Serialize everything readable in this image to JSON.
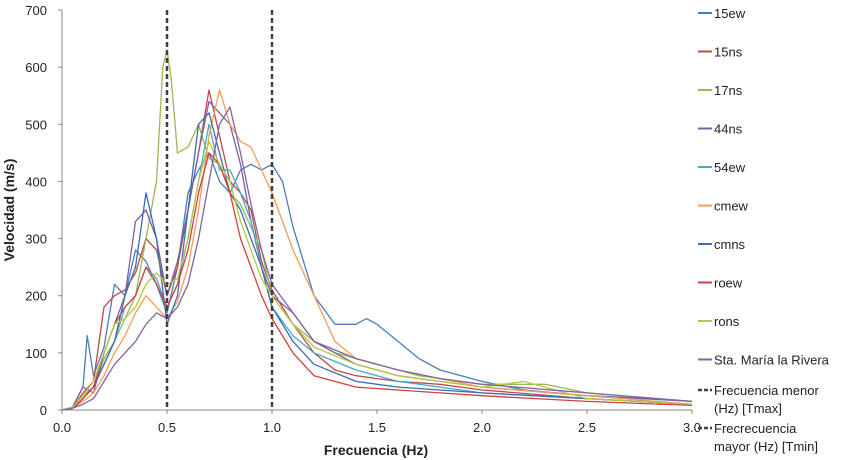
{
  "chart_data": {
    "type": "line",
    "title": "",
    "xlabel": "Frecuencia (Hz)",
    "ylabel": "Velocidad (m/s)",
    "xlim": [
      0,
      3.0
    ],
    "ylim": [
      0,
      700
    ],
    "xticks": [
      "0.0",
      "0.5",
      "1.0",
      "1.5",
      "2.0",
      "2.5",
      "3.0"
    ],
    "yticks": [
      "0",
      "100",
      "200",
      "300",
      "400",
      "500",
      "600",
      "700"
    ],
    "grid": false,
    "legend_position": "right",
    "series": [
      {
        "name": "15ew",
        "color": "#4a7ebb",
        "x": [
          0,
          0.05,
          0.1,
          0.12,
          0.15,
          0.2,
          0.25,
          0.3,
          0.35,
          0.4,
          0.45,
          0.5,
          0.55,
          0.6,
          0.65,
          0.7,
          0.75,
          0.8,
          0.85,
          0.9,
          0.95,
          1.0,
          1.05,
          1.1,
          1.2,
          1.3,
          1.4,
          1.45,
          1.5,
          1.6,
          1.7,
          1.8,
          2.0,
          2.2,
          2.5,
          2.8,
          3.0
        ],
        "y": [
          0,
          5,
          40,
          130,
          60,
          110,
          220,
          200,
          280,
          260,
          220,
          170,
          250,
          380,
          420,
          450,
          400,
          380,
          420,
          430,
          420,
          430,
          400,
          320,
          200,
          150,
          150,
          160,
          150,
          120,
          90,
          70,
          50,
          35,
          25,
          20,
          15
        ]
      },
      {
        "name": "15ns",
        "color": "#be4b48",
        "x": [
          0,
          0.05,
          0.1,
          0.15,
          0.2,
          0.25,
          0.3,
          0.35,
          0.4,
          0.45,
          0.5,
          0.55,
          0.6,
          0.65,
          0.7,
          0.75,
          0.8,
          0.85,
          0.9,
          0.95,
          1.0,
          1.1,
          1.2,
          1.3,
          1.4,
          1.6,
          1.8,
          2.0,
          2.5,
          3.0
        ],
        "y": [
          0,
          3,
          30,
          50,
          180,
          200,
          210,
          240,
          300,
          280,
          200,
          250,
          350,
          450,
          560,
          480,
          400,
          380,
          350,
          260,
          210,
          150,
          100,
          70,
          60,
          50,
          45,
          35,
          20,
          10
        ]
      },
      {
        "name": "17ns",
        "color": "#98b954",
        "x": [
          0,
          0.05,
          0.1,
          0.15,
          0.2,
          0.25,
          0.3,
          0.35,
          0.4,
          0.45,
          0.48,
          0.5,
          0.52,
          0.55,
          0.6,
          0.65,
          0.7,
          0.75,
          0.8,
          0.85,
          0.9,
          0.95,
          1.0,
          1.1,
          1.2,
          1.3,
          1.5,
          1.7,
          2.0,
          2.3,
          2.5,
          3.0
        ],
        "y": [
          0,
          5,
          25,
          40,
          90,
          120,
          160,
          200,
          300,
          400,
          600,
          630,
          580,
          450,
          460,
          500,
          440,
          430,
          380,
          360,
          320,
          280,
          200,
          150,
          120,
          100,
          80,
          60,
          45,
          45,
          30,
          15
        ]
      },
      {
        "name": "44ns",
        "color": "#7d60a0",
        "x": [
          0,
          0.05,
          0.1,
          0.15,
          0.2,
          0.25,
          0.3,
          0.35,
          0.4,
          0.45,
          0.5,
          0.55,
          0.6,
          0.65,
          0.7,
          0.75,
          0.8,
          0.85,
          0.9,
          0.95,
          1.0,
          1.1,
          1.2,
          1.4,
          1.6,
          1.8,
          2.0,
          2.5,
          3.0
        ],
        "y": [
          0,
          5,
          40,
          30,
          100,
          150,
          200,
          330,
          350,
          300,
          200,
          260,
          350,
          450,
          540,
          520,
          500,
          430,
          330,
          250,
          200,
          170,
          120,
          80,
          60,
          50,
          40,
          25,
          15
        ]
      },
      {
        "name": "54ew",
        "color": "#46aac5",
        "x": [
          0,
          0.05,
          0.1,
          0.15,
          0.2,
          0.25,
          0.3,
          0.35,
          0.4,
          0.45,
          0.5,
          0.55,
          0.6,
          0.65,
          0.7,
          0.75,
          0.8,
          0.85,
          0.9,
          0.95,
          1.0,
          1.1,
          1.2,
          1.4,
          1.6,
          1.8,
          2.0,
          2.5,
          3.0
        ],
        "y": [
          0,
          3,
          20,
          40,
          80,
          120,
          180,
          200,
          250,
          230,
          180,
          220,
          300,
          400,
          500,
          420,
          420,
          380,
          330,
          250,
          180,
          130,
          100,
          70,
          50,
          40,
          30,
          20,
          10
        ]
      },
      {
        "name": "cmew",
        "color": "#f59d56",
        "x": [
          0,
          0.05,
          0.1,
          0.15,
          0.2,
          0.25,
          0.3,
          0.35,
          0.4,
          0.45,
          0.5,
          0.55,
          0.6,
          0.65,
          0.7,
          0.75,
          0.8,
          0.85,
          0.9,
          0.95,
          1.0,
          1.05,
          1.1,
          1.2,
          1.3,
          1.4,
          1.6,
          1.8,
          2.0,
          2.5,
          3.0
        ],
        "y": [
          0,
          3,
          15,
          30,
          60,
          100,
          130,
          170,
          200,
          180,
          160,
          190,
          250,
          350,
          480,
          560,
          500,
          470,
          460,
          420,
          380,
          330,
          280,
          200,
          120,
          90,
          70,
          55,
          40,
          25,
          10
        ]
      },
      {
        "name": "cmns",
        "color": "#3e6cb0",
        "x": [
          0,
          0.05,
          0.1,
          0.15,
          0.2,
          0.25,
          0.3,
          0.35,
          0.4,
          0.45,
          0.5,
          0.55,
          0.6,
          0.65,
          0.7,
          0.75,
          0.8,
          0.85,
          0.9,
          0.95,
          1.0,
          1.1,
          1.2,
          1.4,
          1.6,
          1.8,
          2.0,
          2.5,
          3.0
        ],
        "y": [
          0,
          3,
          20,
          40,
          80,
          120,
          200,
          250,
          380,
          300,
          150,
          200,
          350,
          500,
          520,
          450,
          380,
          350,
          300,
          250,
          180,
          120,
          80,
          50,
          40,
          35,
          30,
          20,
          10
        ]
      },
      {
        "name": "roew",
        "color": "#d14040",
        "x": [
          0,
          0.05,
          0.1,
          0.15,
          0.2,
          0.25,
          0.3,
          0.35,
          0.4,
          0.45,
          0.5,
          0.55,
          0.6,
          0.65,
          0.7,
          0.75,
          0.8,
          0.85,
          0.9,
          0.95,
          1.0,
          1.1,
          1.2,
          1.4,
          1.6,
          1.8,
          2.0,
          2.5,
          3.0
        ],
        "y": [
          0,
          3,
          20,
          40,
          100,
          150,
          180,
          200,
          250,
          220,
          180,
          220,
          280,
          380,
          450,
          430,
          380,
          300,
          250,
          200,
          160,
          100,
          60,
          40,
          35,
          30,
          25,
          15,
          8
        ]
      },
      {
        "name": "rons",
        "color": "#b5c943",
        "x": [
          0,
          0.05,
          0.1,
          0.15,
          0.2,
          0.25,
          0.3,
          0.35,
          0.4,
          0.45,
          0.5,
          0.55,
          0.6,
          0.65,
          0.7,
          0.75,
          0.8,
          0.85,
          0.9,
          0.95,
          1.0,
          1.1,
          1.2,
          1.4,
          1.6,
          1.8,
          2.0,
          2.2,
          2.5,
          3.0
        ],
        "y": [
          0,
          5,
          25,
          50,
          100,
          150,
          160,
          180,
          220,
          240,
          220,
          230,
          300,
          400,
          470,
          430,
          400,
          330,
          280,
          230,
          200,
          150,
          110,
          80,
          60,
          50,
          40,
          50,
          20,
          10
        ]
      },
      {
        "name": "Sta. María la Rivera",
        "color": "#8064a2",
        "x": [
          0,
          0.05,
          0.1,
          0.15,
          0.2,
          0.25,
          0.3,
          0.35,
          0.4,
          0.45,
          0.5,
          0.55,
          0.6,
          0.65,
          0.7,
          0.75,
          0.8,
          0.85,
          0.9,
          0.95,
          1.0,
          1.1,
          1.2,
          1.4,
          1.6,
          1.8,
          2.0,
          2.5,
          3.0
        ],
        "y": [
          0,
          3,
          10,
          20,
          50,
          80,
          100,
          120,
          150,
          170,
          160,
          180,
          220,
          300,
          400,
          500,
          530,
          450,
          360,
          280,
          220,
          170,
          120,
          90,
          70,
          55,
          45,
          30,
          15
        ]
      }
    ],
    "reference_lines": [
      {
        "name": "Frecuencia menor (Hz) [Tmax]",
        "name_lines": [
          "Frecuencia menor",
          "(Hz) [Tmax]"
        ],
        "x": 0.5,
        "color": "#404040",
        "style": "dashed"
      },
      {
        "name": "Frecrecuencia mayor (Hz) [Tmin]",
        "name_lines": [
          "Frecrecuencia",
          "mayor (Hz) [Tmin]"
        ],
        "x": 1.0,
        "color": "#404040",
        "style": "dashed"
      }
    ]
  }
}
